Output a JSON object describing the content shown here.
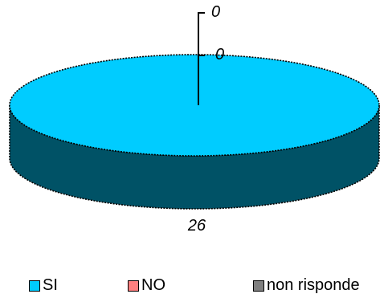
{
  "chart_data": {
    "type": "pie",
    "title": "",
    "slices": [
      {
        "name": "SI",
        "value": 26,
        "label": "26",
        "color": "#00ccff"
      },
      {
        "name": "NO",
        "value": 0,
        "label": "0",
        "color": "#ff8080"
      },
      {
        "name": "non risponde",
        "value": 0,
        "label": "0",
        "color": "#808080"
      }
    ],
    "style": "3d",
    "legend_position": "bottom"
  }
}
